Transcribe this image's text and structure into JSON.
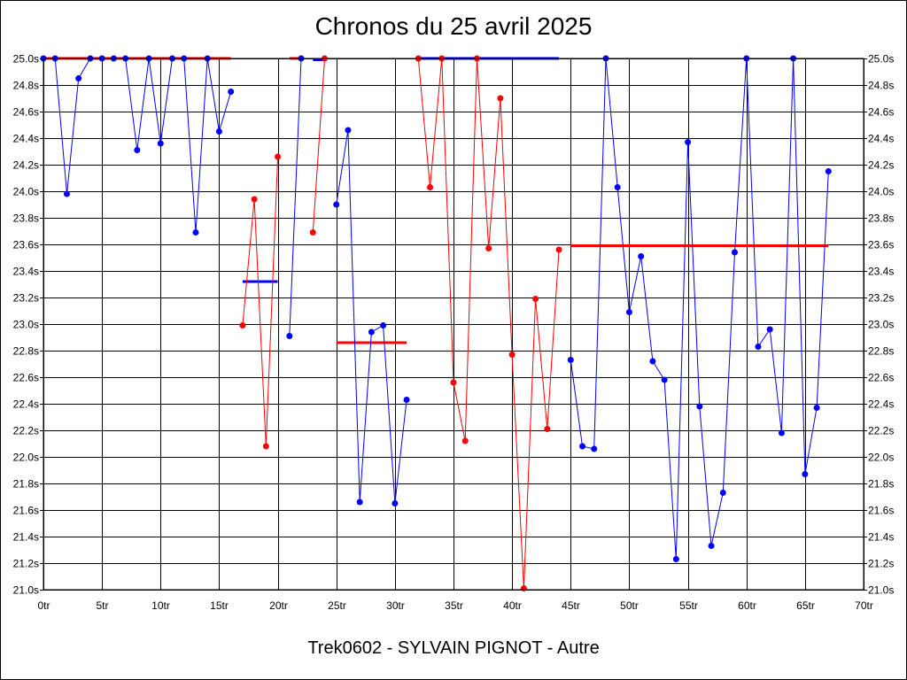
{
  "title": "Chronos du 25 avril 2025",
  "subtitle": "Trek0602 - SYLVAIN PIGNOT - Autre",
  "chart_data": {
    "type": "line",
    "title": "Chronos du 25 avril 2025",
    "xlabel": "",
    "ylabel": "",
    "xlim": [
      0,
      70
    ],
    "ylim": [
      21.0,
      25.0
    ],
    "grid": true,
    "x_ticks": [
      "0tr",
      "5tr",
      "10tr",
      "15tr",
      "20tr",
      "25tr",
      "30tr",
      "35tr",
      "40tr",
      "45tr",
      "50tr",
      "55tr",
      "60tr",
      "65tr",
      "70tr"
    ],
    "y_ticks": [
      "21.0s",
      "21.2s",
      "21.4s",
      "21.6s",
      "21.8s",
      "22.0s",
      "22.2s",
      "22.4s",
      "22.6s",
      "22.8s",
      "23.0s",
      "23.2s",
      "23.4s",
      "23.6s",
      "23.8s",
      "24.0s",
      "24.2s",
      "24.4s",
      "24.6s",
      "24.8s",
      "25.0s"
    ],
    "colors": {
      "blue": "#0000ff",
      "red": "#ff0000",
      "grid": "#000000"
    },
    "series": [
      {
        "color": "#0000ff",
        "points": [
          [
            0,
            25.0
          ],
          [
            1,
            25.0
          ],
          [
            2,
            23.98
          ],
          [
            3,
            24.85
          ],
          [
            4,
            25.0
          ],
          [
            5,
            25.0
          ],
          [
            6,
            25.0
          ],
          [
            7,
            25.0
          ],
          [
            8,
            24.31
          ],
          [
            9,
            25.0
          ],
          [
            10,
            24.36
          ],
          [
            11,
            25.0
          ],
          [
            12,
            25.0
          ],
          [
            13,
            23.69
          ],
          [
            14,
            25.0
          ],
          [
            15,
            24.45
          ],
          [
            16,
            24.75
          ]
        ]
      },
      {
        "color": "#ff0000",
        "points": [
          [
            17,
            22.99
          ],
          [
            18,
            23.94
          ],
          [
            19,
            22.08
          ],
          [
            20,
            24.26
          ]
        ]
      },
      {
        "color": "#0000ff",
        "points": [
          [
            21,
            22.91
          ],
          [
            22,
            25.0
          ]
        ]
      },
      {
        "color": "#ff0000",
        "points": [
          [
            23,
            23.69
          ],
          [
            24,
            25.0
          ]
        ]
      },
      {
        "color": "#0000ff",
        "points": [
          [
            25,
            23.9
          ],
          [
            26,
            24.46
          ],
          [
            27,
            21.66
          ],
          [
            28,
            22.94
          ],
          [
            29,
            22.99
          ],
          [
            30,
            21.65
          ],
          [
            31,
            22.43
          ]
        ]
      },
      {
        "color": "#ff0000",
        "points": [
          [
            32,
            25.0
          ],
          [
            33,
            24.03
          ],
          [
            34,
            25.0
          ],
          [
            35,
            22.56
          ],
          [
            36,
            22.12
          ],
          [
            37,
            25.0
          ],
          [
            38,
            23.57
          ],
          [
            39,
            24.7
          ],
          [
            40,
            22.77
          ],
          [
            41,
            21.01
          ],
          [
            42,
            23.19
          ],
          [
            43,
            22.21
          ],
          [
            44,
            23.56
          ]
        ]
      },
      {
        "color": "#0000ff",
        "points": [
          [
            45,
            22.73
          ],
          [
            46,
            22.08
          ],
          [
            47,
            22.06
          ],
          [
            48,
            25.0
          ],
          [
            49,
            24.03
          ],
          [
            50,
            23.09
          ],
          [
            51,
            23.51
          ],
          [
            52,
            22.72
          ],
          [
            53,
            22.58
          ],
          [
            54,
            21.23
          ],
          [
            55,
            24.37
          ],
          [
            56,
            22.38
          ],
          [
            57,
            21.33
          ],
          [
            58,
            21.73
          ],
          [
            59,
            23.54
          ],
          [
            60,
            25.0
          ],
          [
            61,
            22.83
          ],
          [
            62,
            22.96
          ],
          [
            63,
            22.18
          ],
          [
            64,
            25.0
          ],
          [
            65,
            21.87
          ],
          [
            66,
            22.37
          ],
          [
            67,
            24.15
          ]
        ]
      }
    ],
    "averages": [
      {
        "color": "#ff0000",
        "x": [
          0,
          16
        ],
        "y": 25.0
      },
      {
        "color": "#0000ff",
        "x": [
          17,
          20
        ],
        "y": 23.32
      },
      {
        "color": "#ff0000",
        "x": [
          21,
          22
        ],
        "y": 25.0
      },
      {
        "color": "#0000ff",
        "x": [
          23,
          24
        ],
        "y": 24.99
      },
      {
        "color": "#ff0000",
        "x": [
          25,
          31
        ],
        "y": 22.86
      },
      {
        "color": "#0000ff",
        "x": [
          32,
          44
        ],
        "y": 25.0
      },
      {
        "color": "#ff0000",
        "x": [
          45,
          67
        ],
        "y": 23.59
      }
    ]
  }
}
